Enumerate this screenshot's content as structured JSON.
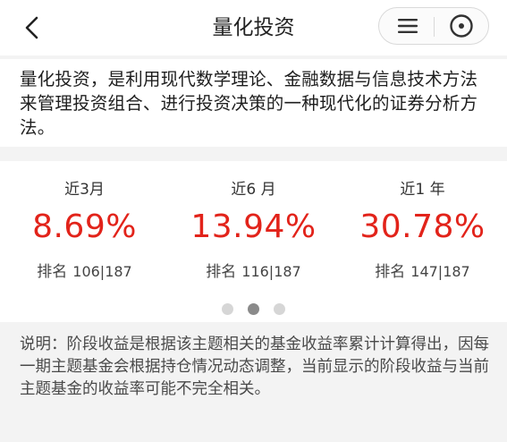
{
  "header": {
    "title": "量化投资",
    "back_icon": "chevron-left-icon",
    "menu_icon": "menu-icon",
    "close_icon": "close-circle-icon"
  },
  "description": "量化投资，是利用现代数学理论、金融数据与信息技术方法来管理投资组合、进行投资决策的一种现代化的证券分析方法。",
  "stats": [
    {
      "period": "近3月",
      "value": "8.69%",
      "rank_label": "排名",
      "rank": "106|187"
    },
    {
      "period": "近6 月",
      "value": "13.94%",
      "rank_label": "排名",
      "rank": "116|187"
    },
    {
      "period": "近1 年",
      "value": "30.78%",
      "rank_label": "排名",
      "rank": "147|187"
    }
  ],
  "pagination": {
    "count": 3,
    "active_index": 1
  },
  "note": "说明：阶段收益是根据该主题相关的基金收益率累计计算得出，因每一期主题基金会根据持仓情况动态调整，当前显示的阶段收益与当前主题基金的收益率可能不完全相关。",
  "colors": {
    "value_red": "#e2231a",
    "page_bg": "#f3f3f3",
    "dot_inactive": "#d6d6d6",
    "dot_active": "#8a8a8a"
  }
}
